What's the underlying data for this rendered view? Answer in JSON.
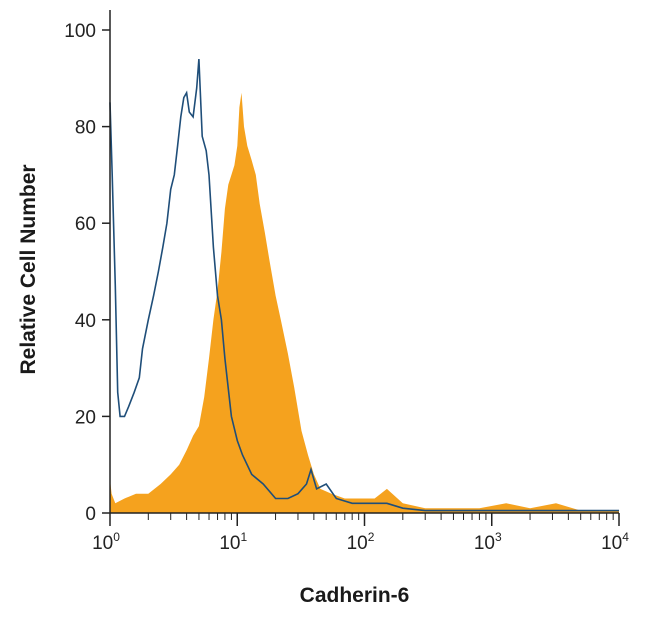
{
  "chart_data": {
    "type": "area",
    "xlabel": "Cadherin-6",
    "ylabel": "Relative Cell Number",
    "xscale": "log",
    "xlim": [
      1,
      10000
    ],
    "ylim": [
      0,
      100
    ],
    "xticks": [
      {
        "value": 1,
        "base": "10",
        "exp": "0"
      },
      {
        "value": 10,
        "base": "10",
        "exp": "1"
      },
      {
        "value": 100,
        "base": "10",
        "exp": "2"
      },
      {
        "value": 1000,
        "base": "10",
        "exp": "3"
      },
      {
        "value": 10000,
        "base": "10",
        "exp": "4"
      }
    ],
    "yticks": [
      0,
      20,
      40,
      60,
      80,
      100
    ],
    "grid": false,
    "series": [
      {
        "kind": "filled",
        "color": "#f5a21e",
        "points": [
          [
            1,
            7
          ],
          [
            1.03,
            4
          ],
          [
            1.1,
            2
          ],
          [
            1.3,
            3
          ],
          [
            1.6,
            4
          ],
          [
            2,
            4
          ],
          [
            2.5,
            6
          ],
          [
            3,
            8
          ],
          [
            3.5,
            10
          ],
          [
            4,
            13
          ],
          [
            4.5,
            16
          ],
          [
            5,
            18
          ],
          [
            5.5,
            24
          ],
          [
            6,
            32
          ],
          [
            6.5,
            40
          ],
          [
            7,
            46
          ],
          [
            7.5,
            54
          ],
          [
            8,
            63
          ],
          [
            8.5,
            68
          ],
          [
            9,
            70
          ],
          [
            9.5,
            72
          ],
          [
            10,
            76
          ],
          [
            10.4,
            84
          ],
          [
            10.8,
            87
          ],
          [
            11.3,
            80
          ],
          [
            12,
            76
          ],
          [
            13,
            73
          ],
          [
            14,
            70
          ],
          [
            15,
            64
          ],
          [
            16.5,
            58
          ],
          [
            18,
            52
          ],
          [
            20,
            45
          ],
          [
            22,
            40
          ],
          [
            25,
            33
          ],
          [
            28,
            26
          ],
          [
            32,
            17
          ],
          [
            36,
            12
          ],
          [
            40,
            8
          ],
          [
            45,
            5
          ],
          [
            55,
            4
          ],
          [
            70,
            3
          ],
          [
            90,
            3
          ],
          [
            120,
            3
          ],
          [
            150,
            5
          ],
          [
            200,
            2
          ],
          [
            300,
            1
          ],
          [
            500,
            1
          ],
          [
            800,
            1
          ],
          [
            1300,
            2
          ],
          [
            2000,
            1
          ],
          [
            3200,
            2
          ],
          [
            5000,
            0.5
          ],
          [
            10000,
            0.5
          ]
        ]
      },
      {
        "kind": "outline",
        "color": "#1f4e79",
        "points": [
          [
            1,
            85
          ],
          [
            1.04,
            70
          ],
          [
            1.1,
            47
          ],
          [
            1.15,
            25
          ],
          [
            1.2,
            20
          ],
          [
            1.3,
            20
          ],
          [
            1.4,
            22
          ],
          [
            1.55,
            25
          ],
          [
            1.7,
            28
          ],
          [
            1.8,
            34
          ],
          [
            2,
            40
          ],
          [
            2.2,
            45
          ],
          [
            2.4,
            50
          ],
          [
            2.6,
            55
          ],
          [
            2.8,
            60
          ],
          [
            3,
            67
          ],
          [
            3.2,
            70
          ],
          [
            3.4,
            76
          ],
          [
            3.6,
            82
          ],
          [
            3.8,
            86
          ],
          [
            4,
            87
          ],
          [
            4.2,
            83
          ],
          [
            4.5,
            82
          ],
          [
            4.8,
            88
          ],
          [
            5,
            94
          ],
          [
            5.3,
            78
          ],
          [
            5.7,
            75
          ],
          [
            6,
            70
          ],
          [
            6.5,
            55
          ],
          [
            7,
            45
          ],
          [
            7.5,
            40
          ],
          [
            8,
            32
          ],
          [
            9,
            20
          ],
          [
            10,
            15
          ],
          [
            11,
            12
          ],
          [
            13,
            8
          ],
          [
            16,
            6
          ],
          [
            20,
            3
          ],
          [
            25,
            3
          ],
          [
            30,
            4
          ],
          [
            35,
            6
          ],
          [
            38,
            9
          ],
          [
            42,
            5
          ],
          [
            50,
            6
          ],
          [
            60,
            3
          ],
          [
            80,
            2
          ],
          [
            100,
            2
          ],
          [
            150,
            2
          ],
          [
            200,
            1
          ],
          [
            300,
            0.5
          ],
          [
            1000,
            0.5
          ],
          [
            10000,
            0.5
          ]
        ]
      }
    ]
  }
}
